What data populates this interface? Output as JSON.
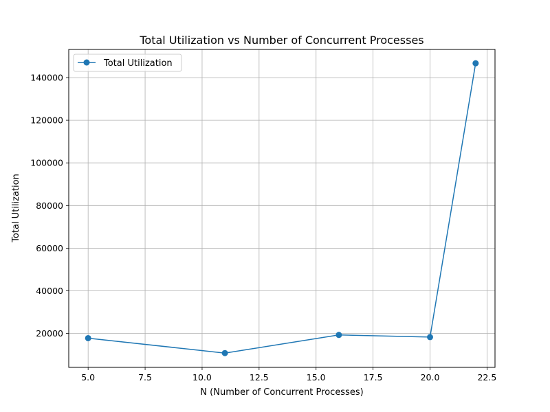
{
  "chart_data": {
    "type": "line",
    "title": "Total Utilization vs Number of Concurrent Processes",
    "xlabel": "N (Number of Concurrent Processes)",
    "ylabel": "Total Utilization",
    "xlim": [
      4.15,
      22.85
    ],
    "ylim": [
      4100,
      153200
    ],
    "x_ticks": [
      5.0,
      7.5,
      10.0,
      12.5,
      15.0,
      17.5,
      20.0,
      22.5
    ],
    "x_tick_labels": [
      "5.0",
      "7.5",
      "10.0",
      "12.5",
      "15.0",
      "17.5",
      "20.0",
      "22.5"
    ],
    "y_ticks": [
      20000,
      40000,
      60000,
      80000,
      100000,
      120000,
      140000
    ],
    "y_tick_labels": [
      "20000",
      "40000",
      "60000",
      "80000",
      "100000",
      "120000",
      "140000"
    ],
    "grid": true,
    "legend_position": "top-left",
    "series": [
      {
        "name": "Total Utilization",
        "color": "#1f77b4",
        "marker": "circle",
        "x": [
          5,
          11,
          16,
          20,
          22
        ],
        "y": [
          17800,
          10800,
          19300,
          18300,
          146700
        ]
      }
    ]
  }
}
